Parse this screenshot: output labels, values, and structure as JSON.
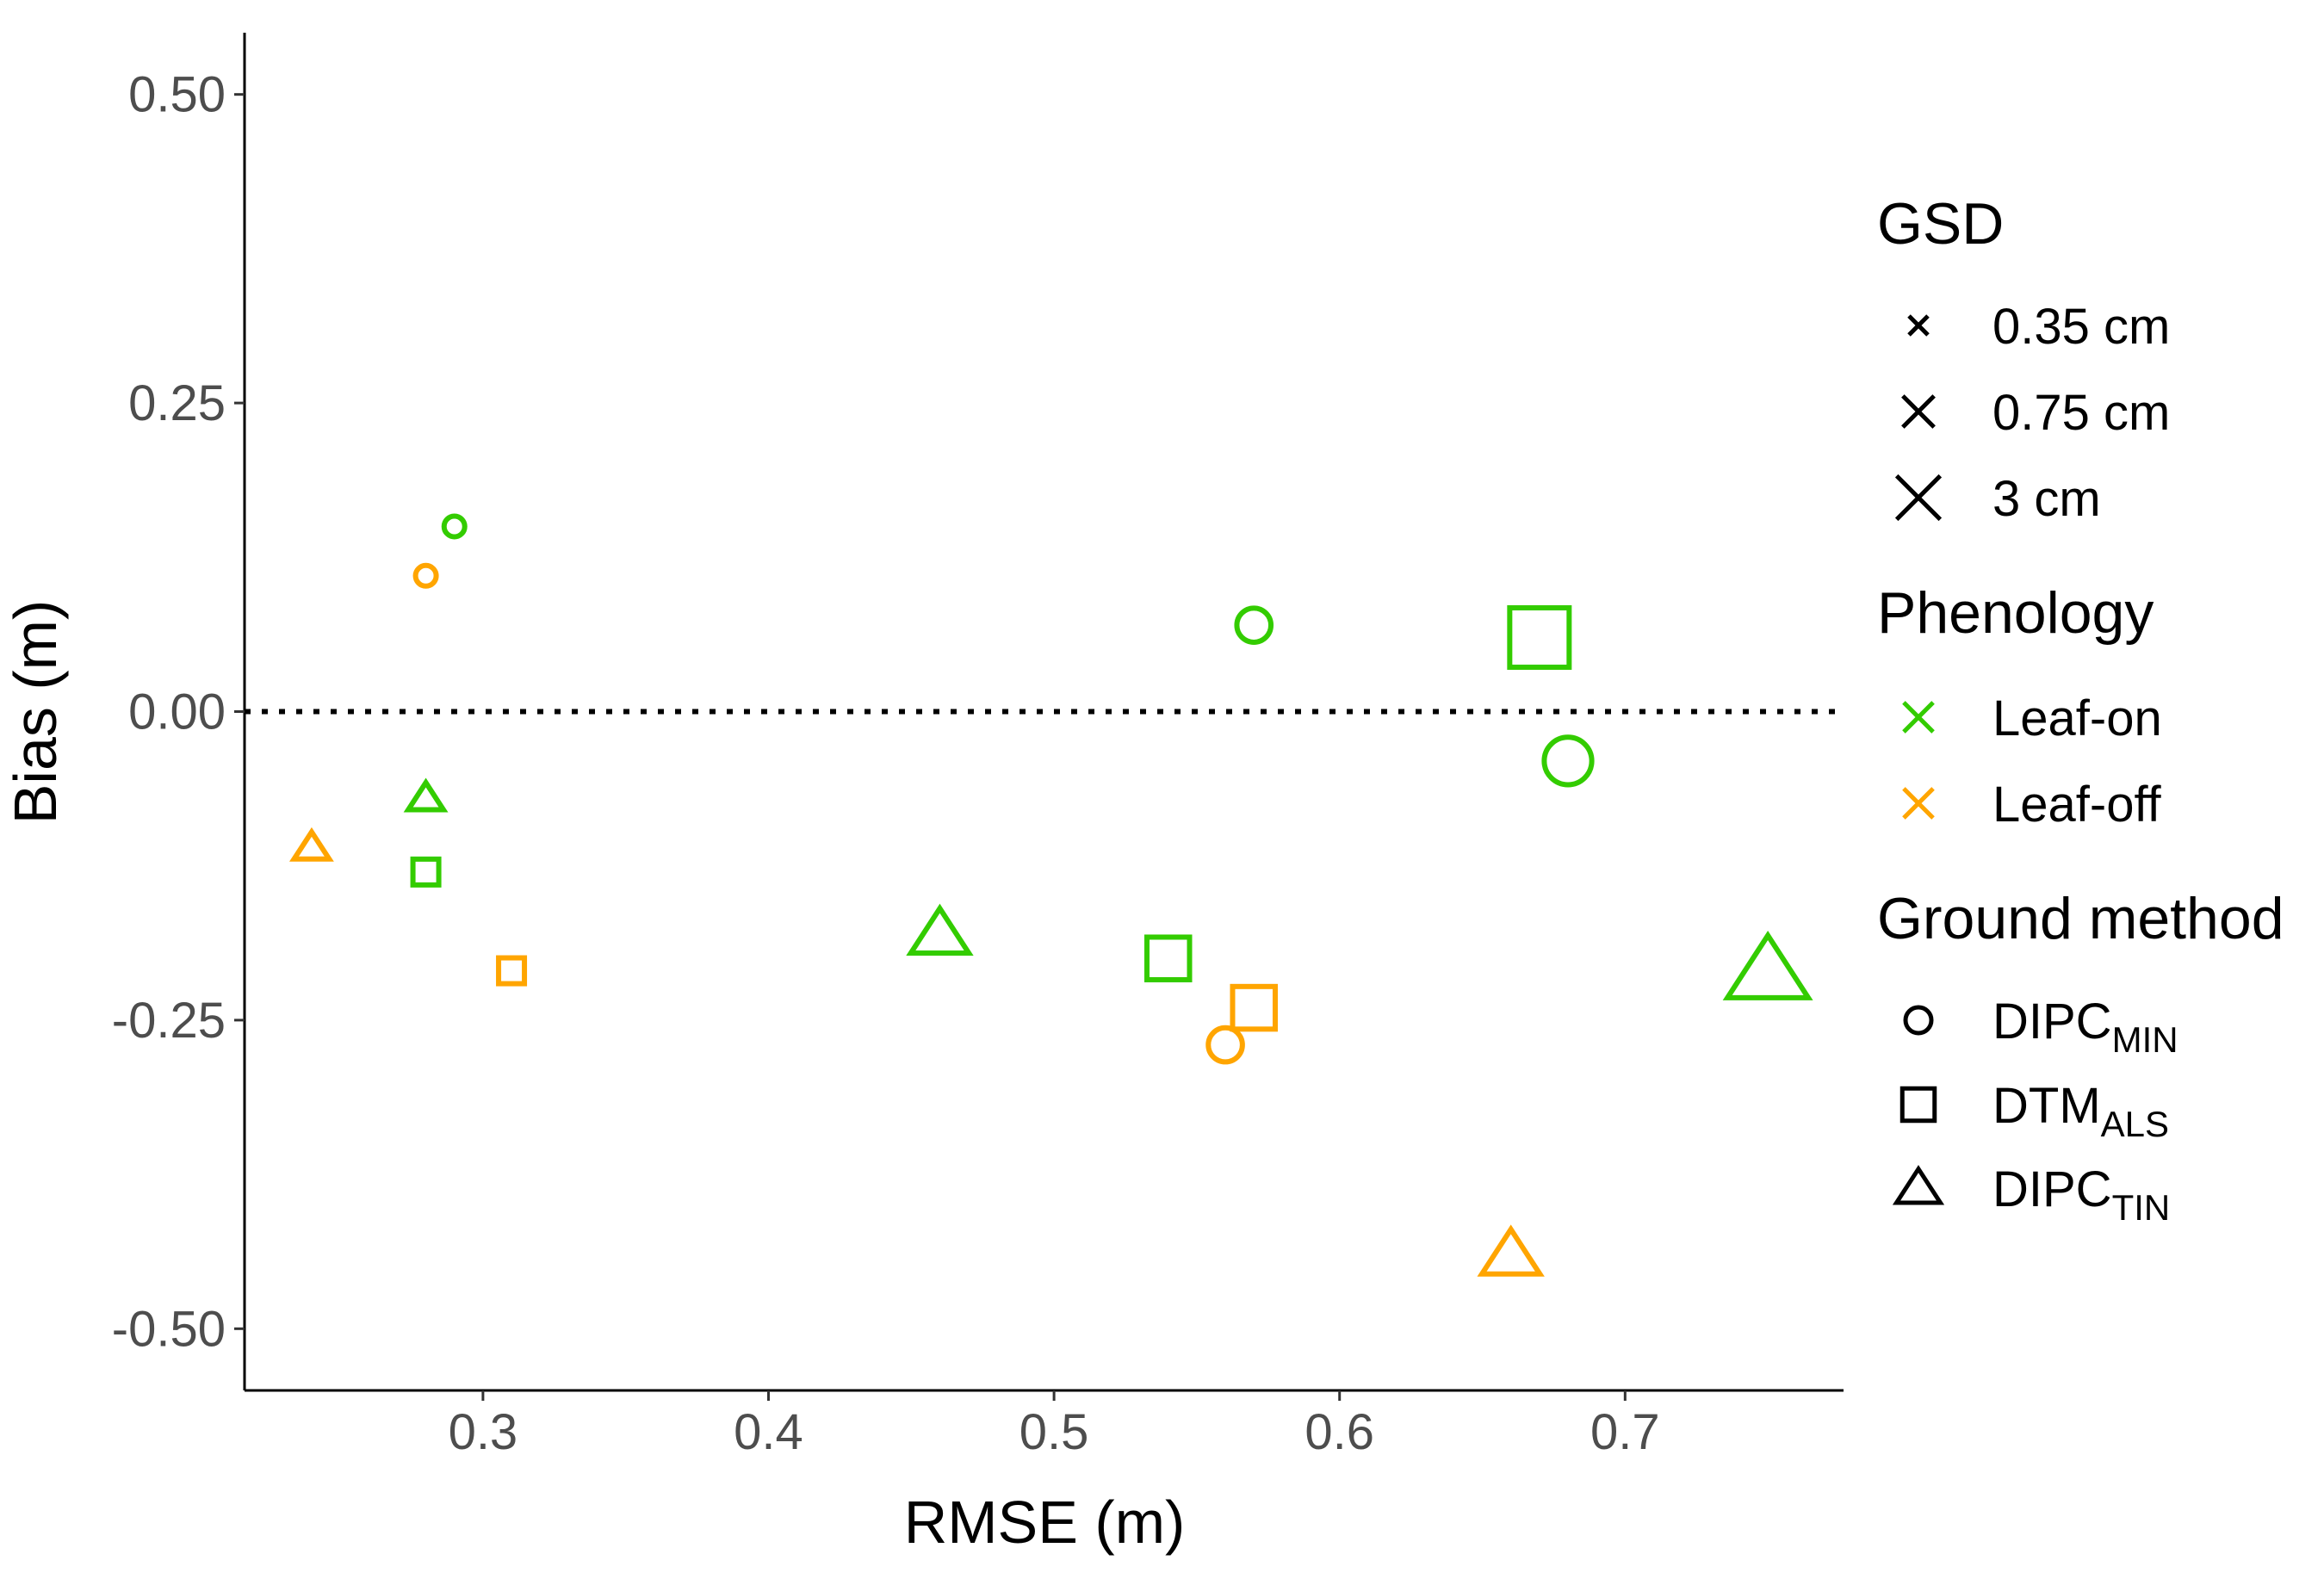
{
  "chart_data": {
    "type": "scatter",
    "xlabel": "RMSE (m)",
    "ylabel": "Bias (m)",
    "xlim": [
      0.2165,
      0.7765
    ],
    "ylim": [
      -0.55,
      0.55
    ],
    "x_ticks": [
      {
        "value": 0.3,
        "label": "0.3"
      },
      {
        "value": 0.4,
        "label": "0.4"
      },
      {
        "value": 0.5,
        "label": "0.5"
      },
      {
        "value": 0.6,
        "label": "0.6"
      },
      {
        "value": 0.7,
        "label": "0.7"
      }
    ],
    "y_ticks": [
      {
        "value": 0.5,
        "label": "0.50"
      },
      {
        "value": 0.25,
        "label": "0.25"
      },
      {
        "value": 0.0,
        "label": "0.00"
      },
      {
        "value": -0.25,
        "label": "-0.25"
      },
      {
        "value": -0.5,
        "label": "-0.50"
      }
    ],
    "reference_line": {
      "y": 0.0,
      "style": "dotted"
    },
    "grid": false,
    "colors": {
      "Leaf-on": "#33cc00",
      "Leaf-off": "#ffa500"
    },
    "legend": {
      "placement": "right",
      "gsd": {
        "title": "GSD",
        "items": [
          {
            "label": "0.35 cm",
            "gsd": "0.35 cm"
          },
          {
            "label": "0.75 cm",
            "gsd": "0.75 cm"
          },
          {
            "label": "3 cm",
            "gsd": "3 cm"
          }
        ]
      },
      "phenology": {
        "title": "Phenology",
        "items": [
          {
            "label": "Leaf-on",
            "color": "#33cc00"
          },
          {
            "label": "Leaf-off",
            "color": "#ffa500"
          }
        ]
      },
      "ground_method": {
        "title": "Ground method",
        "items": [
          {
            "base": "DIPC",
            "sub": "MIN",
            "shape": "circle"
          },
          {
            "base": "DTM",
            "sub": "ALS",
            "shape": "square"
          },
          {
            "base": "DIPC",
            "sub": "TIN",
            "shape": "triangle"
          }
        ]
      }
    },
    "points": [
      {
        "rmse": 0.29,
        "bias": 0.15,
        "phenology": "Leaf-on",
        "gsd": "0.35 cm",
        "method": "circle"
      },
      {
        "rmse": 0.28,
        "bias": 0.11,
        "phenology": "Leaf-off",
        "gsd": "0.35 cm",
        "method": "circle"
      },
      {
        "rmse": 0.28,
        "bias": -0.07,
        "phenology": "Leaf-on",
        "gsd": "0.35 cm",
        "method": "triangle"
      },
      {
        "rmse": 0.24,
        "bias": -0.11,
        "phenology": "Leaf-off",
        "gsd": "0.35 cm",
        "method": "triangle"
      },
      {
        "rmse": 0.28,
        "bias": -0.13,
        "phenology": "Leaf-on",
        "gsd": "0.35 cm",
        "method": "square"
      },
      {
        "rmse": 0.31,
        "bias": -0.21,
        "phenology": "Leaf-off",
        "gsd": "0.35 cm",
        "method": "square"
      },
      {
        "rmse": 0.46,
        "bias": -0.18,
        "phenology": "Leaf-on",
        "gsd": "0.75 cm",
        "method": "triangle"
      },
      {
        "rmse": 0.54,
        "bias": -0.2,
        "phenology": "Leaf-on",
        "gsd": "0.75 cm",
        "method": "square"
      },
      {
        "rmse": 0.57,
        "bias": 0.07,
        "phenology": "Leaf-on",
        "gsd": "0.75 cm",
        "method": "circle"
      },
      {
        "rmse": 0.57,
        "bias": -0.24,
        "phenology": "Leaf-off",
        "gsd": "0.75 cm",
        "method": "square"
      },
      {
        "rmse": 0.56,
        "bias": -0.27,
        "phenology": "Leaf-off",
        "gsd": "0.75 cm",
        "method": "circle"
      },
      {
        "rmse": 0.66,
        "bias": -0.44,
        "phenology": "Leaf-off",
        "gsd": "0.75 cm",
        "method": "triangle"
      },
      {
        "rmse": 0.67,
        "bias": 0.06,
        "phenology": "Leaf-on",
        "gsd": "3 cm",
        "method": "square"
      },
      {
        "rmse": 0.68,
        "bias": -0.04,
        "phenology": "Leaf-on",
        "gsd": "3 cm",
        "method": "circle"
      },
      {
        "rmse": 0.75,
        "bias": -0.21,
        "phenology": "Leaf-on",
        "gsd": "3 cm",
        "method": "triangle"
      }
    ]
  }
}
